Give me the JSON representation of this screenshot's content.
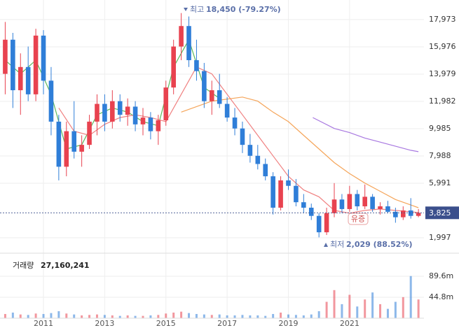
{
  "chart_data": {
    "type": "candlestick",
    "x": [
      2009.75,
      2010.0,
      2010.25,
      2010.5,
      2010.75,
      2011.0,
      2011.25,
      2011.5,
      2011.75,
      2012.0,
      2012.25,
      2012.5,
      2012.75,
      2013.0,
      2013.25,
      2013.5,
      2013.75,
      2014.0,
      2014.25,
      2014.5,
      2014.75,
      2015.0,
      2015.25,
      2015.5,
      2015.75,
      2016.0,
      2016.25,
      2016.5,
      2016.75,
      2017.0,
      2017.25,
      2017.5,
      2017.75,
      2018.0,
      2018.25,
      2018.5,
      2018.75,
      2019.0,
      2019.25,
      2019.5,
      2019.75,
      2020.0,
      2020.25,
      2020.5,
      2020.75,
      2021.0,
      2021.25,
      2021.5,
      2021.75,
      2022.0,
      2022.25,
      2022.5,
      2022.75,
      2023.0,
      2023.25
    ],
    "open": [
      14000,
      16500,
      12800,
      14500,
      12500,
      16800,
      13500,
      10500,
      7200,
      9800,
      8300,
      8800,
      10500,
      11800,
      10500,
      12000,
      11000,
      11600,
      10300,
      10800,
      9800,
      10600,
      13000,
      16000,
      17500,
      15000,
      14200,
      12000,
      12800,
      11800,
      10800,
      10000,
      8800,
      8000,
      7400,
      6500,
      4200,
      6200,
      5800,
      4600,
      4200,
      3600,
      2400,
      3800,
      4800,
      4100,
      5200,
      4300,
      5000,
      4100,
      4300,
      3900,
      3500,
      4000,
      3600
    ],
    "high": [
      17800,
      17000,
      15500,
      16000,
      17300,
      17200,
      14500,
      11000,
      10500,
      12000,
      9500,
      11000,
      12500,
      12500,
      12800,
      12500,
      12200,
      12000,
      11500,
      11200,
      11000,
      13500,
      16500,
      18450,
      18200,
      16500,
      14800,
      13500,
      14000,
      12300,
      11500,
      10500,
      9600,
      8800,
      7800,
      6800,
      6500,
      7000,
      6300,
      5200,
      4500,
      3800,
      4200,
      6000,
      5200,
      5800,
      5500,
      5900,
      5200,
      4600,
      4700,
      4200,
      4300,
      4900,
      4100
    ],
    "low": [
      12500,
      11500,
      11000,
      12000,
      12000,
      12500,
      9500,
      6200,
      6500,
      7800,
      7200,
      8500,
      9500,
      9800,
      10000,
      10500,
      10200,
      9800,
      9500,
      9200,
      8800,
      10200,
      12500,
      15000,
      14500,
      13500,
      11500,
      11000,
      11500,
      10500,
      9500,
      8200,
      7500,
      7000,
      6200,
      3700,
      4000,
      5500,
      4300,
      3800,
      3300,
      2029,
      2200,
      3500,
      3800,
      3900,
      4000,
      4100,
      3900,
      3700,
      3800,
      3100,
      3300,
      3400,
      3500
    ],
    "close": [
      16500,
      12800,
      14500,
      12500,
      16800,
      13500,
      10500,
      7200,
      9800,
      8300,
      8800,
      10500,
      11800,
      10500,
      12000,
      11000,
      11600,
      10300,
      10800,
      9800,
      10600,
      13000,
      16000,
      17500,
      15000,
      14200,
      12000,
      12800,
      11800,
      10800,
      10000,
      8800,
      8000,
      7400,
      6500,
      4200,
      6200,
      5800,
      4600,
      4200,
      3600,
      2400,
      3800,
      4800,
      4100,
      5200,
      4300,
      5000,
      4100,
      4300,
      3900,
      3500,
      4000,
      3600,
      3825
    ],
    "volume": [
      9000000,
      12000000,
      8000000,
      7000000,
      10000000,
      9000000,
      11000000,
      15000000,
      10000000,
      8000000,
      6000000,
      7000000,
      8000000,
      7000000,
      6000000,
      5000000,
      6000000,
      5000000,
      5000000,
      6000000,
      7000000,
      10000000,
      12000000,
      14000000,
      11000000,
      9000000,
      8000000,
      7000000,
      8000000,
      6000000,
      6000000,
      7000000,
      6000000,
      6000000,
      5000000,
      9000000,
      12000000,
      8000000,
      7000000,
      6000000,
      8000000,
      15000000,
      35000000,
      60000000,
      30000000,
      50000000,
      25000000,
      40000000,
      55000000,
      30000000,
      20000000,
      35000000,
      45000000,
      90000000,
      40000000
    ],
    "up_color": "#e8424f",
    "down_color": "#2f7ed8",
    "moving_averages": [
      {
        "color": "#5cb85c",
        "x": [
          2009.75,
          2010.25,
          2010.75,
          2011.25,
          2011.75,
          2012.25,
          2012.75,
          2013.25,
          2013.75,
          2014.25,
          2014.75,
          2015.25,
          2015.75,
          2016.25,
          2016.75
        ],
        "values": [
          15000,
          14000,
          15000,
          12500,
          8500,
          8800,
          11000,
          11500,
          11200,
          10500,
          10200,
          14500,
          16500,
          13000,
          12200
        ]
      },
      {
        "color": "#f08080",
        "x": [
          2011.5,
          2012.0,
          2012.5,
          2013.0,
          2013.5,
          2014.0,
          2014.5,
          2015.0,
          2015.5,
          2016.0,
          2016.5,
          2017.0,
          2017.5,
          2018.0,
          2018.5,
          2019.0,
          2019.5,
          2020.0,
          2020.5,
          2021.0,
          2021.5,
          2022.0,
          2022.5,
          2023.0,
          2023.25
        ],
        "values": [
          11500,
          9800,
          9500,
          10300,
          10800,
          11000,
          10800,
          10500,
          12500,
          14500,
          14000,
          12500,
          11000,
          9500,
          8000,
          6500,
          5500,
          5000,
          4000,
          3800,
          4000,
          4100,
          4000,
          3900,
          3850
        ]
      },
      {
        "color": "#f5a55a",
        "x": [
          2015.5,
          2016.5,
          2017.5,
          2018.0,
          2018.5,
          2019.0,
          2019.5,
          2020.0,
          2020.5,
          2021.0,
          2021.5,
          2022.0,
          2022.5,
          2023.0,
          2023.25
        ],
        "values": [
          11200,
          12000,
          12300,
          12000,
          11200,
          10500,
          9500,
          8500,
          7500,
          6700,
          6000,
          5400,
          4800,
          4400,
          4200
        ]
      },
      {
        "color": "#a878e0",
        "x": [
          2019.8,
          2020.5,
          2021.0,
          2021.5,
          2022.0,
          2022.5,
          2023.0,
          2023.25
        ],
        "values": [
          10800,
          10000,
          9700,
          9300,
          9000,
          8700,
          8400,
          8300
        ]
      }
    ],
    "xlim": [
      2009.58,
      2023.43
    ],
    "xticks": [
      2011,
      2013,
      2015,
      2017,
      2019,
      2021
    ],
    "ylim": [
      973,
      19406
    ],
    "yticks": [
      {
        "value": 1997,
        "label": "1,997"
      },
      {
        "value": 5991,
        "label": "5,991"
      },
      {
        "value": 7988,
        "label": "7,988"
      },
      {
        "value": 9985,
        "label": "9,985"
      },
      {
        "value": 11982,
        "label": "11,982"
      },
      {
        "value": 13979,
        "label": "13,979"
      },
      {
        "value": 15976,
        "label": "15,976"
      },
      {
        "value": 17973,
        "label": "17,973"
      }
    ],
    "grid": true,
    "last_price": {
      "value": 3825,
      "label": "3,825"
    },
    "annotations": {
      "high": {
        "label": "최고",
        "text": "18,450 (-79.27%)"
      },
      "low": {
        "label": "최저",
        "text": "2,029 (88.52%)"
      },
      "event": "유증"
    },
    "volume_label": "거래량",
    "volume_total": {
      "value": 27160241,
      "label": "27,160,241"
    },
    "volume_ylim": [
      0,
      134400000
    ],
    "volume_yticks": [
      {
        "value": 89600000,
        "label": "89.6m"
      },
      {
        "value": 44800000,
        "label": "44.8m"
      }
    ]
  }
}
